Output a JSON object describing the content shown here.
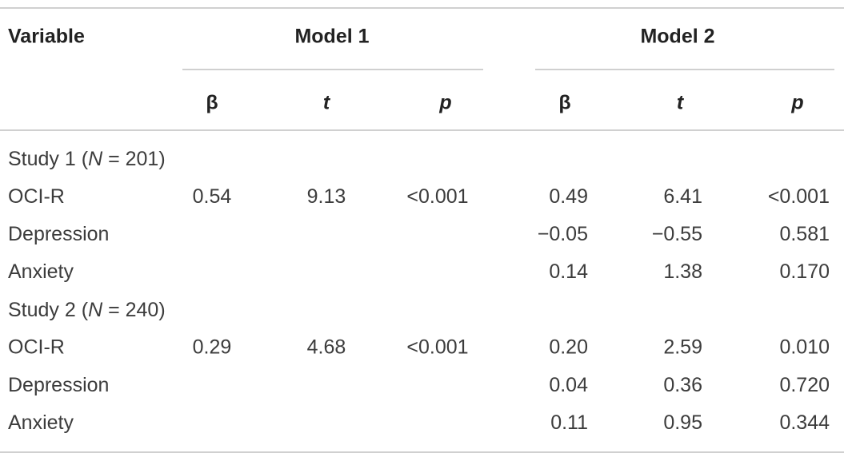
{
  "table": {
    "header": {
      "variable": "Variable",
      "models": [
        "Model 1",
        "Model 2"
      ],
      "stats": [
        "β",
        "t",
        "p",
        "β",
        "t",
        "p"
      ]
    },
    "rows": [
      {
        "label": {
          "before": "Study 1 (",
          "italic": "N",
          "after": " = 201)"
        }
      },
      {
        "label": "OCI-R",
        "cells": [
          "0.54",
          "9.13",
          "<0.001",
          "0.49",
          "6.41",
          "<0.001"
        ]
      },
      {
        "label": "Depression",
        "cells": [
          null,
          null,
          null,
          "−0.05",
          "−0.55",
          "0.581"
        ]
      },
      {
        "label": "Anxiety",
        "cells": [
          null,
          null,
          null,
          "0.14",
          "1.38",
          "0.170"
        ]
      },
      {
        "label": {
          "before": "Study 2 (",
          "italic": "N",
          "after": " = 240)"
        }
      },
      {
        "label": "OCI-R",
        "cells": [
          "0.29",
          "4.68",
          "<0.001",
          "0.20",
          "2.59",
          "0.010"
        ]
      },
      {
        "label": "Depression",
        "cells": [
          null,
          null,
          null,
          "0.04",
          "0.36",
          "0.720"
        ]
      },
      {
        "label": "Anxiety",
        "cells": [
          null,
          null,
          null,
          "0.11",
          "0.95",
          "0.344"
        ]
      }
    ]
  }
}
